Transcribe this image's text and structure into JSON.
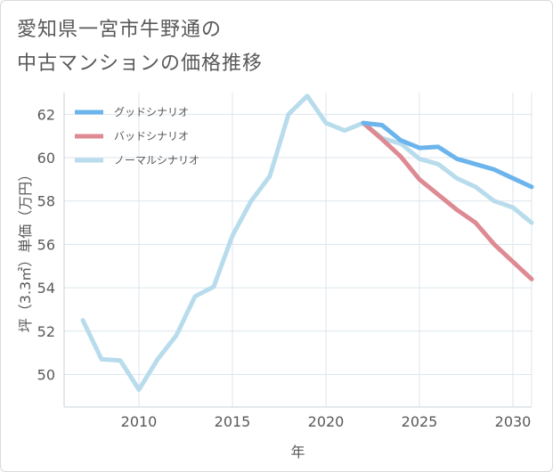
{
  "title_lines": [
    "愛知県一宮市牛野通の",
    "中古マンションの価格推移"
  ],
  "chart_data": {
    "type": "line",
    "title": "愛知県一宮市牛野通の中古マンションの価格推移",
    "xlabel": "年",
    "ylabel": "坪（3.3㎡）単価（万円）",
    "xlim": [
      2006,
      2031
    ],
    "ylim": [
      48.5,
      63
    ],
    "x_ticks": [
      2010,
      2015,
      2020,
      2025,
      2030
    ],
    "y_ticks": [
      50,
      52,
      54,
      56,
      58,
      60,
      62
    ],
    "grid": true,
    "legend_position": "top-left",
    "series": [
      {
        "name": "グッドシナリオ",
        "color": "#6cb4ec",
        "x": [
          2022,
          2023,
          2024,
          2025,
          2026,
          2027,
          2028,
          2029,
          2030,
          2031
        ],
        "values": [
          61.6,
          61.5,
          60.8,
          60.45,
          60.5,
          59.95,
          59.7,
          59.45,
          59.05,
          58.65
        ]
      },
      {
        "name": "バッドシナリオ",
        "color": "#dd8a92",
        "x": [
          2022,
          2023,
          2024,
          2025,
          2026,
          2027,
          2028,
          2029,
          2030,
          2031
        ],
        "values": [
          61.6,
          60.85,
          60.05,
          59.0,
          58.3,
          57.6,
          57.0,
          56.0,
          55.2,
          54.4
        ]
      },
      {
        "name": "ノーマルシナリオ",
        "color": "#b8dcec",
        "x": [
          2007,
          2008,
          2009,
          2010,
          2011,
          2012,
          2013,
          2014,
          2015,
          2016,
          2017,
          2018,
          2019,
          2020,
          2021,
          2022,
          2023,
          2024,
          2025,
          2026,
          2027,
          2028,
          2029,
          2030,
          2031
        ],
        "values": [
          52.5,
          50.7,
          50.65,
          49.3,
          50.7,
          51.8,
          53.6,
          54.05,
          56.4,
          58.0,
          59.15,
          62.0,
          62.85,
          61.6,
          61.25,
          61.6,
          60.9,
          60.65,
          59.95,
          59.7,
          59.05,
          58.65,
          58.0,
          57.7,
          57.0
        ]
      }
    ]
  }
}
